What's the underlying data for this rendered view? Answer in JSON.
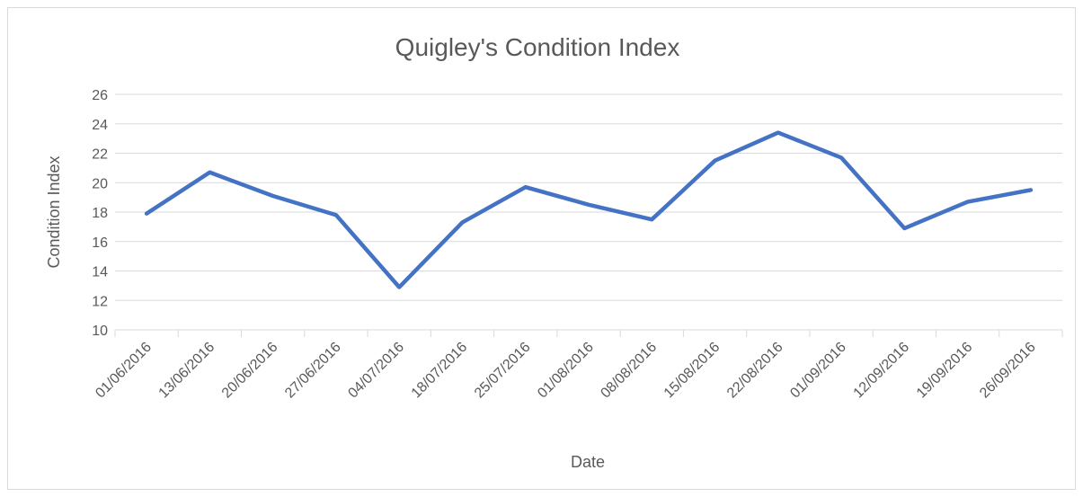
{
  "chart_data": {
    "type": "line",
    "title": "Quigley's Condition Index",
    "x_label": "Date",
    "y_label": "Condition Index",
    "categories": [
      "01/06/2016",
      "13/06/2016",
      "20/06/2016",
      "27/06/2016",
      "04/07/2016",
      "18/07/2016",
      "25/07/2016",
      "01/08/2016",
      "08/08/2016",
      "15/08/2016",
      "22/08/2016",
      "01/09/2016",
      "12/09/2016",
      "19/09/2016",
      "26/09/2016"
    ],
    "series": [
      {
        "name": "Condition Index",
        "color": "#4472c4",
        "values": [
          17.9,
          20.7,
          19.1,
          17.8,
          12.9,
          17.3,
          19.7,
          18.5,
          17.5,
          21.5,
          23.4,
          21.7,
          16.9,
          18.7,
          19.5
        ]
      }
    ],
    "ylim": [
      10,
      26
    ],
    "yticks": [
      10,
      12,
      14,
      16,
      18,
      20,
      22,
      24,
      26
    ],
    "grid": true
  }
}
